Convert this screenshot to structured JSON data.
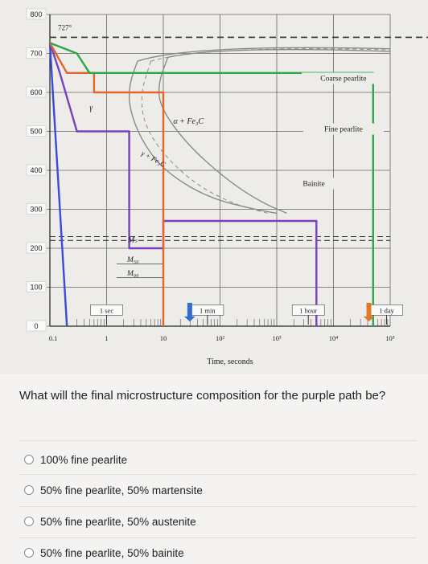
{
  "chart_data": {
    "type": "line",
    "title": "",
    "xlabel": "Time, seconds",
    "ylabel": "",
    "x_scale": "log",
    "xlim": [
      0.1,
      100000
    ],
    "ylim": [
      0,
      800
    ],
    "x_ticks": [
      "0.1",
      "1",
      "10",
      "10²",
      "10³",
      "10⁴",
      "10⁵"
    ],
    "y_ticks": [
      "0",
      "100",
      "200",
      "300",
      "400",
      "500",
      "600",
      "700",
      "800"
    ],
    "eutectoid_label": "727°",
    "region_labels": {
      "gamma": "γ",
      "alpha_fe3c": "α + Fe₃C",
      "gamma_plus": "γ + Fe₃C",
      "coarse_pearlite": "Coarse pearlite",
      "fine_pearlite": "Fine pearlite",
      "bainite": "Bainite",
      "ms": "Mₛ",
      "m50": "M₅₀",
      "m90": "M₉₀"
    },
    "time_markers": [
      {
        "label": "1 sec",
        "time": 1,
        "arrow": false,
        "color": ""
      },
      {
        "label": "1 min",
        "time": 60,
        "arrow": true,
        "color": "#2f6fd0"
      },
      {
        "label": "1 hour",
        "time": 3600,
        "arrow": false,
        "color": ""
      },
      {
        "label": "1 day",
        "time": 86400,
        "arrow": true,
        "color": "#e07a2a"
      }
    ],
    "colors": {
      "blue": "#3a4bd6",
      "purple": "#7a3fc0",
      "orange": "#e0662a",
      "green": "#2aa84a",
      "curve": "#8a8a8a"
    },
    "series": [
      {
        "color": "blue",
        "x": [
          0.1,
          0.2
        ],
        "y": [
          727,
          0
        ]
      },
      {
        "color": "purple",
        "x": [
          0.1,
          0.15,
          0.3,
          2.5,
          2.5,
          10,
          10,
          3000,
          5000,
          5000
        ],
        "y": [
          727,
          650,
          500,
          500,
          200,
          200,
          270,
          270,
          270,
          0
        ]
      },
      {
        "color": "orange",
        "x": [
          0.1,
          0.2,
          0.6,
          0.6,
          10,
          10
        ],
        "y": [
          727,
          650,
          650,
          600,
          600,
          0
        ]
      },
      {
        "color": "green",
        "x": [
          0.1,
          0.3,
          0.5,
          30000,
          30000,
          50000,
          50000
        ],
        "y": [
          727,
          700,
          650,
          650,
          650,
          650,
          0
        ]
      }
    ],
    "curves": {
      "start": {
        "x": [
          3.5,
          2.5,
          2.5,
          4,
          10,
          60,
          400,
          1000
        ],
        "y": [
          680,
          620,
          560,
          480,
          400,
          330,
          300,
          290
        ]
      },
      "finish": {
        "x": [
          12,
          8,
          9,
          25,
          120,
          500,
          1500
        ],
        "y": [
          690,
          620,
          560,
          470,
          380,
          320,
          290
        ]
      },
      "fifty": {
        "x": [
          6,
          4,
          4.5,
          10,
          40,
          200,
          700
        ],
        "y": [
          680,
          600,
          520,
          440,
          360,
          310,
          290
        ]
      }
    }
  },
  "question": {
    "text": "What will the final microstructure composition for the purple path be?",
    "options": [
      {
        "label": "100% fine pearlite"
      },
      {
        "label": "50% fine pearlite, 50% martensite"
      },
      {
        "label": "50% fine pearlite, 50% austenite"
      },
      {
        "label": "50% fine pearlite, 50% bainite"
      }
    ]
  }
}
